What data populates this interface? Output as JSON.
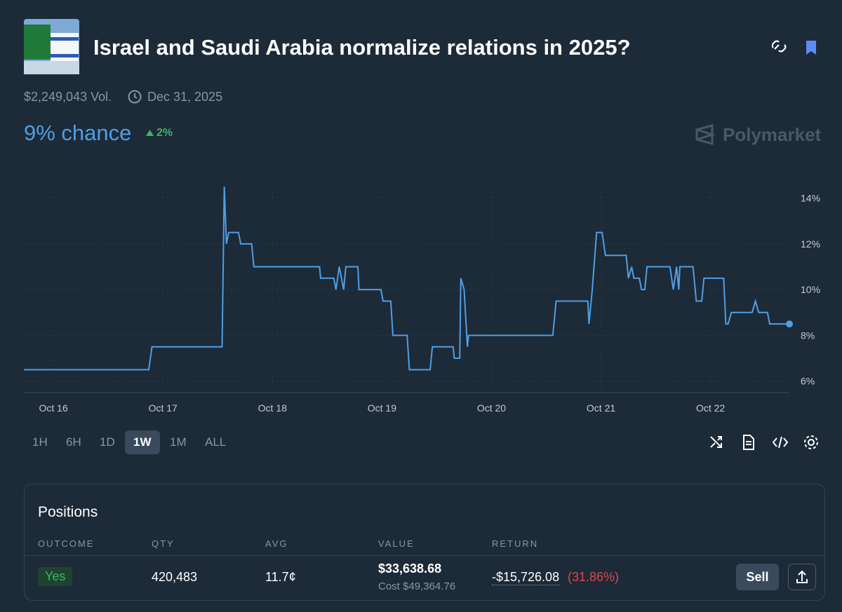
{
  "header": {
    "title": "Israel and Saudi Arabia normalize relations in 2025?",
    "volume": "$2,249,043 Vol.",
    "end_date": "Dec 31, 2025",
    "chance": "9% chance",
    "change": "2%",
    "brand": "Polymarket"
  },
  "chart_data": {
    "type": "line",
    "color": "#4f9fe3",
    "x": [
      15.73,
      16.87,
      16.9,
      17.54,
      17.56,
      17.58,
      17.6,
      17.69,
      17.71,
      17.81,
      17.83,
      18.43,
      18.44,
      18.56,
      18.58,
      18.61,
      18.63,
      18.65,
      18.67,
      18.78,
      18.79,
      18.99,
      19.01,
      19.08,
      19.1,
      19.23,
      19.25,
      19.44,
      19.46,
      19.65,
      19.66,
      19.71,
      19.72,
      19.75,
      19.78,
      19.79,
      20.56,
      20.59,
      20.88,
      20.89,
      20.92,
      20.96,
      21.01,
      21.04,
      21.23,
      21.25,
      21.28,
      21.3,
      21.35,
      21.37,
      21.4,
      21.42,
      21.63,
      21.66,
      21.69,
      21.71,
      21.72,
      21.84,
      21.86,
      21.87,
      21.92,
      21.94,
      22.12,
      22.14,
      22.16,
      22.19,
      22.38,
      22.41,
      22.44,
      22.52,
      22.54,
      22.72
    ],
    "values": [
      6.5,
      6.5,
      7.5,
      7.5,
      14.5,
      12,
      12.5,
      12.5,
      12,
      12,
      11,
      11,
      10.5,
      10.5,
      10,
      11,
      10.5,
      10,
      11,
      11,
      10,
      10,
      9.5,
      9.5,
      8,
      8,
      6.5,
      6.5,
      7.5,
      7.5,
      7,
      7,
      10.5,
      10,
      7.5,
      8,
      8,
      9.5,
      9.5,
      8.5,
      10,
      12.5,
      12.5,
      11.5,
      11.5,
      10.5,
      11,
      10.5,
      10.5,
      10,
      10,
      11,
      11,
      10,
      11,
      10,
      11,
      11,
      10,
      9.5,
      9.5,
      10.5,
      10.5,
      8.5,
      8.5,
      9,
      9,
      9.5,
      9,
      9,
      8.5,
      8.5
    ],
    "xlim": [
      15.73,
      22.72
    ],
    "xticks": [
      {
        "value": 16,
        "label": "Oct 16"
      },
      {
        "value": 17,
        "label": "Oct 17"
      },
      {
        "value": 18,
        "label": "Oct 18"
      },
      {
        "value": 19,
        "label": "Oct 19"
      },
      {
        "value": 20,
        "label": "Oct 20"
      },
      {
        "value": 21,
        "label": "Oct 21"
      },
      {
        "value": 22,
        "label": "Oct 22"
      }
    ],
    "ylim": [
      5.5,
      15
    ],
    "yticks": [
      {
        "value": 6,
        "label": "6%"
      },
      {
        "value": 8,
        "label": "8%"
      },
      {
        "value": 10,
        "label": "10%"
      },
      {
        "value": 12,
        "label": "12%"
      },
      {
        "value": 14,
        "label": "14%"
      }
    ],
    "grid": true
  },
  "ranges": [
    "1H",
    "6H",
    "1D",
    "1W",
    "1M",
    "ALL"
  ],
  "active_range": "1W",
  "positions": {
    "title": "Positions",
    "columns": [
      "OUTCOME",
      "QTY",
      "AVG",
      "VALUE",
      "RETURN"
    ],
    "row": {
      "outcome": "Yes",
      "qty": "420,483",
      "avg": "11.7¢",
      "value": "$33,638.68",
      "cost": "Cost $49,364.76",
      "return": "-$15,726.08",
      "return_pct": "(31.86%)"
    },
    "action": "Sell"
  }
}
